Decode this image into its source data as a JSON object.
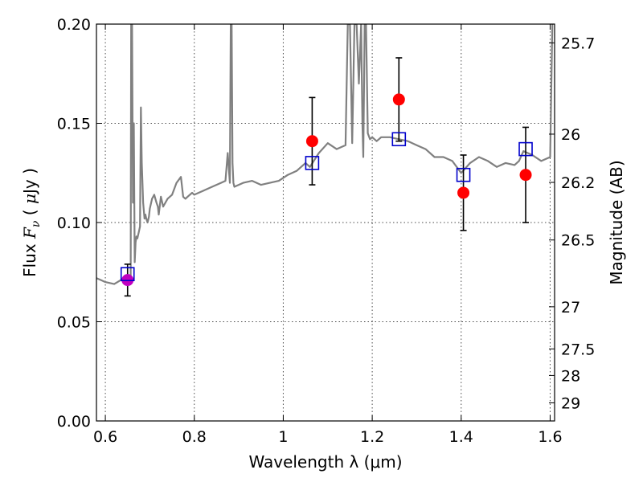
{
  "chart_data": {
    "type": "scatter",
    "xlabel": "Wavelength  λ (μm)",
    "ylabel": "Flux  F_ν  ( μJy )",
    "ylabel_parts": [
      "Flux ",
      "F",
      "ν",
      "  ( ",
      "μ",
      "Jy )"
    ],
    "y2label": "Magnitude (AB)",
    "xlim": [
      0.58,
      1.61
    ],
    "ylim": [
      0.0,
      0.2
    ],
    "grid": true,
    "x_ticks": [
      {
        "value": 0.6,
        "label": "0.6"
      },
      {
        "value": 0.8,
        "label": "0.8"
      },
      {
        "value": 1.0,
        "label": "1"
      },
      {
        "value": 1.2,
        "label": "1.2"
      },
      {
        "value": 1.4,
        "label": "1.4"
      },
      {
        "value": 1.6,
        "label": "1.6"
      }
    ],
    "y_ticks": [
      {
        "value": 0.0,
        "label": "0.00"
      },
      {
        "value": 0.05,
        "label": "0.05"
      },
      {
        "value": 0.1,
        "label": "0.10"
      },
      {
        "value": 0.15,
        "label": "0.15"
      },
      {
        "value": 0.2,
        "label": "0.20"
      }
    ],
    "mag_ticks": [
      {
        "mag": 25.7,
        "label": "25.7"
      },
      {
        "mag": 26,
        "label": "26"
      },
      {
        "mag": 26.2,
        "label": "26.2"
      },
      {
        "mag": 26.5,
        "label": "26.5"
      },
      {
        "mag": 27,
        "label": "27"
      },
      {
        "mag": 27.5,
        "label": "27.5"
      },
      {
        "mag": 28,
        "label": "28"
      },
      {
        "mag": 29,
        "label": "29"
      }
    ],
    "series": [
      {
        "kind": "line",
        "color": "#808080",
        "x": [
          0.58,
          0.6,
          0.62,
          0.635,
          0.645,
          0.652,
          0.655,
          0.657,
          0.658,
          0.66,
          0.662,
          0.664,
          0.666,
          0.668,
          0.67,
          0.672,
          0.675,
          0.678,
          0.68,
          0.682,
          0.685,
          0.688,
          0.69,
          0.692,
          0.695,
          0.698,
          0.7,
          0.705,
          0.71,
          0.715,
          0.718,
          0.72,
          0.725,
          0.73,
          0.74,
          0.75,
          0.76,
          0.77,
          0.775,
          0.78,
          0.785,
          0.79,
          0.795,
          0.8,
          0.82,
          0.84,
          0.86,
          0.87,
          0.875,
          0.88,
          0.882,
          0.884,
          0.886,
          0.888,
          0.89,
          0.91,
          0.93,
          0.95,
          0.97,
          0.99,
          1.01,
          1.03,
          1.05,
          1.06,
          1.08,
          1.1,
          1.12,
          1.14,
          1.145,
          1.15,
          1.155,
          1.16,
          1.165,
          1.17,
          1.175,
          1.178,
          1.18,
          1.183,
          1.186,
          1.19,
          1.195,
          1.2,
          1.205,
          1.21,
          1.215,
          1.22,
          1.24,
          1.26,
          1.28,
          1.3,
          1.32,
          1.34,
          1.36,
          1.38,
          1.4,
          1.42,
          1.44,
          1.46,
          1.48,
          1.5,
          1.52,
          1.53,
          1.54,
          1.56,
          1.58,
          1.6,
          1.605
        ],
        "y": [
          0.072,
          0.07,
          0.069,
          0.071,
          0.07,
          0.07,
          0.071,
          0.073,
          0.2,
          0.2,
          0.11,
          0.15,
          0.08,
          0.09,
          0.093,
          0.092,
          0.095,
          0.098,
          0.158,
          0.13,
          0.11,
          0.102,
          0.104,
          0.102,
          0.1,
          0.103,
          0.107,
          0.112,
          0.114,
          0.11,
          0.108,
          0.104,
          0.113,
          0.108,
          0.112,
          0.114,
          0.12,
          0.123,
          0.113,
          0.112,
          0.113,
          0.114,
          0.115,
          0.114,
          0.116,
          0.118,
          0.12,
          0.121,
          0.135,
          0.12,
          0.2,
          0.2,
          0.13,
          0.12,
          0.118,
          0.12,
          0.121,
          0.119,
          0.12,
          0.121,
          0.124,
          0.126,
          0.13,
          0.128,
          0.135,
          0.14,
          0.137,
          0.139,
          0.2,
          0.2,
          0.14,
          0.2,
          0.2,
          0.17,
          0.2,
          0.15,
          0.133,
          0.2,
          0.2,
          0.145,
          0.142,
          0.143,
          0.142,
          0.141,
          0.142,
          0.143,
          0.143,
          0.142,
          0.141,
          0.139,
          0.137,
          0.133,
          0.133,
          0.131,
          0.125,
          0.13,
          0.133,
          0.131,
          0.128,
          0.13,
          0.129,
          0.131,
          0.136,
          0.134,
          0.131,
          0.133,
          0.2
        ]
      },
      {
        "kind": "errorbar",
        "color": "#000000",
        "x": [
          0.65,
          1.065,
          1.26,
          1.405,
          1.545
        ],
        "y": [
          0.071,
          0.141,
          0.162,
          0.115,
          0.124
        ],
        "yerr": [
          0.008,
          0.022,
          0.021,
          0.019,
          0.024
        ]
      },
      {
        "kind": "markers-circle",
        "colors": [
          "#c000c0",
          "#ff0000",
          "#ff0000",
          "#ff0000",
          "#ff0000"
        ],
        "x": [
          0.65,
          1.065,
          1.26,
          1.405,
          1.545
        ],
        "y": [
          0.071,
          0.141,
          0.162,
          0.115,
          0.124
        ]
      },
      {
        "kind": "markers-square",
        "color": "#0000cc",
        "x": [
          0.65,
          1.065,
          1.26,
          1.405,
          1.545
        ],
        "y": [
          0.074,
          0.13,
          0.142,
          0.124,
          0.137
        ]
      }
    ]
  }
}
